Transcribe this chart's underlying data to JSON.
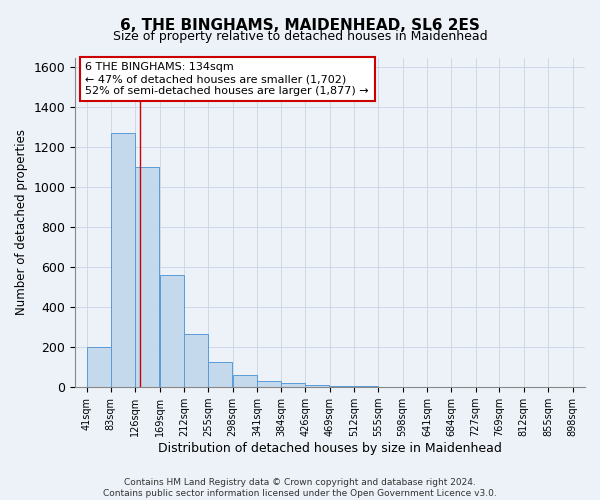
{
  "title1": "6, THE BINGHAMS, MAIDENHEAD, SL6 2ES",
  "title2": "Size of property relative to detached houses in Maidenhead",
  "xlabel": "Distribution of detached houses by size in Maidenhead",
  "ylabel": "Number of detached properties",
  "bar_color": "#c5d9ed",
  "bar_edge_color": "#5b9bd5",
  "bar_left_edges": [
    41,
    83,
    126,
    169,
    212,
    255,
    298,
    341,
    384,
    426,
    469,
    512,
    555,
    598,
    641,
    684,
    727,
    769,
    812,
    855
  ],
  "bar_widths": [
    42,
    43,
    43,
    43,
    43,
    43,
    43,
    43,
    42,
    43,
    43,
    43,
    43,
    43,
    43,
    43,
    42,
    43,
    43,
    43
  ],
  "bar_heights": [
    200,
    1270,
    1100,
    560,
    265,
    125,
    60,
    30,
    20,
    10,
    5,
    5,
    3,
    3,
    2,
    2,
    1,
    1,
    1,
    1
  ],
  "xtick_labels": [
    "41sqm",
    "83sqm",
    "126sqm",
    "169sqm",
    "212sqm",
    "255sqm",
    "298sqm",
    "341sqm",
    "384sqm",
    "426sqm",
    "469sqm",
    "512sqm",
    "555sqm",
    "598sqm",
    "641sqm",
    "684sqm",
    "727sqm",
    "769sqm",
    "812sqm",
    "855sqm",
    "898sqm"
  ],
  "xtick_positions": [
    41,
    83,
    126,
    169,
    212,
    255,
    298,
    341,
    384,
    426,
    469,
    512,
    555,
    598,
    641,
    684,
    727,
    769,
    812,
    855,
    898
  ],
  "ylim": [
    0,
    1650
  ],
  "xlim": [
    20,
    920
  ],
  "red_line_x": 134,
  "annotation_text": "6 THE BINGHAMS: 134sqm\n← 47% of detached houses are smaller (1,702)\n52% of semi-detached houses are larger (1,877) →",
  "annotation_box_color": "#ffffff",
  "annotation_box_edge_color": "#cc0000",
  "footnote": "Contains HM Land Registry data © Crown copyright and database right 2024.\nContains public sector information licensed under the Open Government Licence v3.0.",
  "background_color": "#edf2f9",
  "grid_color": "#c8d4e3"
}
